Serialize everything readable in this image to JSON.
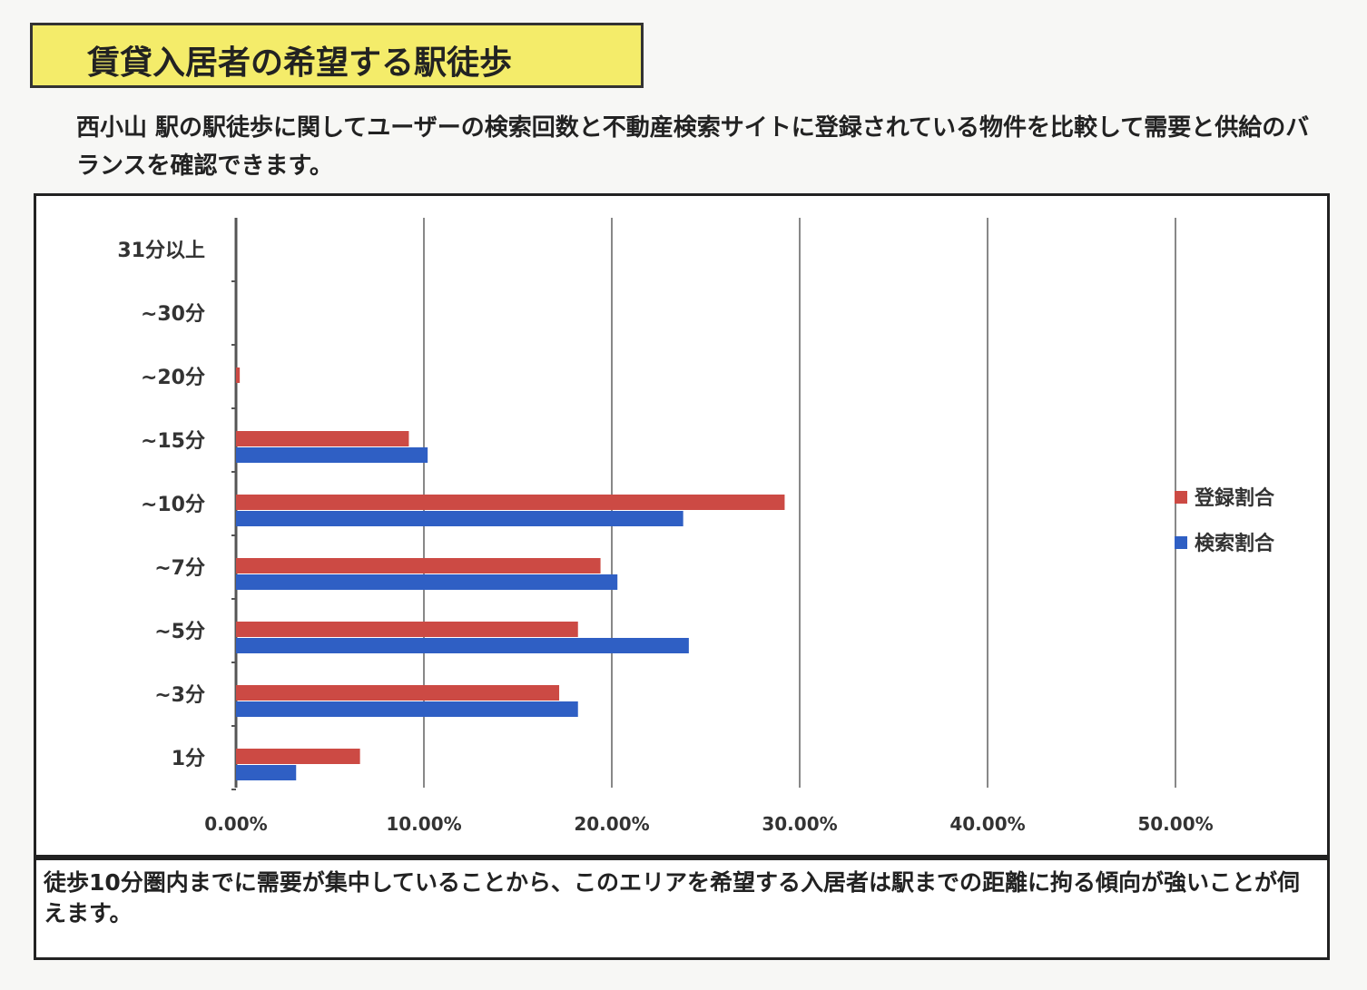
{
  "title": "賃貸入居者の希望する駅徒歩",
  "description": "西小山 駅の駅徒歩に関してユーザーの検索回数と不動産検索サイトに登録されている物件を比較して需要と供給のバランスを確認できます。",
  "note": "徒歩10分圏内までに需要が集中していることから、このエリアを希望する入居者は駅までの距離に拘る傾向が強いことが伺えます。",
  "chart_data": {
    "type": "bar",
    "orientation": "horizontal",
    "categories": [
      "31分以上",
      "~30分",
      "~20分",
      "~15分",
      "~10分",
      "~7分",
      "~5分",
      "~3分",
      "1分"
    ],
    "series": [
      {
        "name": "登録割合",
        "color": "#cc4a44",
        "values": [
          0,
          0,
          0.2,
          9.2,
          29.2,
          19.4,
          18.2,
          17.2,
          6.6
        ]
      },
      {
        "name": "検索割合",
        "color": "#2f5fc4",
        "values": [
          0,
          0,
          0,
          10.2,
          23.8,
          20.3,
          24.1,
          18.2,
          3.2
        ]
      }
    ],
    "xlim": [
      0,
      50
    ],
    "xticks": [
      "0.00%",
      "10.00%",
      "20.00%",
      "30.00%",
      "40.00%",
      "50.00%"
    ],
    "grid": "vertical",
    "legend": "right"
  }
}
